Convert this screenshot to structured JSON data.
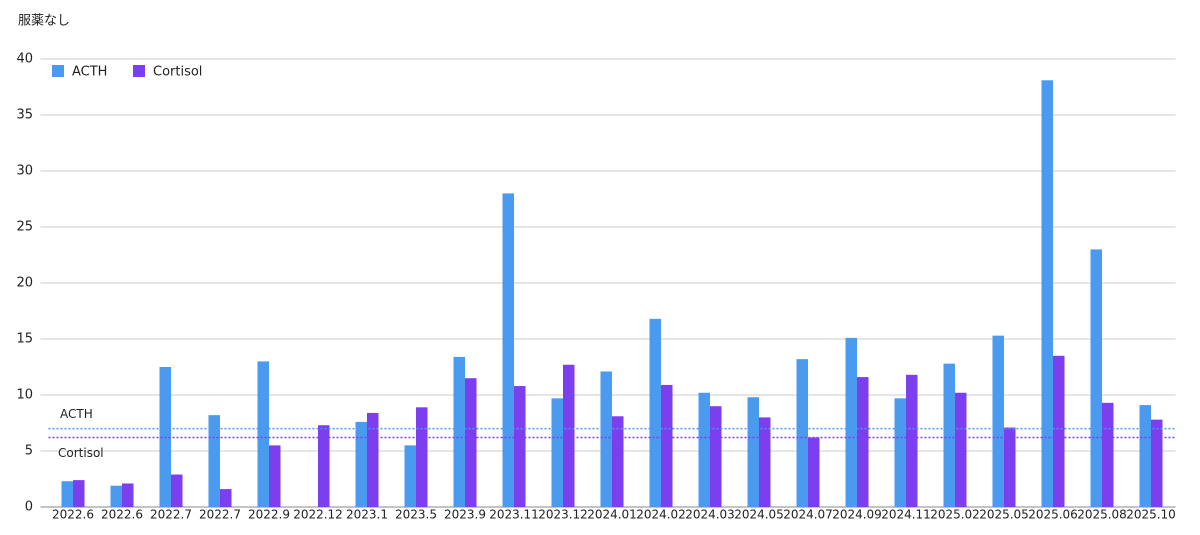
{
  "chart_data": {
    "type": "bar",
    "title": "服薬なし",
    "categories": [
      "2022.6",
      "2022.6",
      "2022.7",
      "2022.7",
      "2022.9",
      "2022.12",
      "2023.1",
      "2023.5",
      "2023.9",
      "2023.11",
      "2023.12",
      "2024.01",
      "2024.02",
      "2024.03",
      "2024.05",
      "2024.07",
      "2024.09",
      "2024.11",
      "2025.02",
      "2025.05",
      "2025.06",
      "2025.08",
      "2025.10"
    ],
    "series": [
      {
        "name": "ACTH",
        "color": "#4a9af0",
        "values": [
          2.3,
          1.9,
          12.5,
          8.2,
          13.0,
          null,
          7.6,
          5.5,
          13.4,
          28.0,
          9.7,
          12.1,
          16.8,
          10.2,
          9.8,
          13.2,
          15.1,
          9.7,
          12.8,
          15.3,
          38.1,
          23.0,
          9.1
        ]
      },
      {
        "name": "Cortisol",
        "color": "#7b3ff0",
        "values": [
          2.4,
          2.1,
          2.9,
          1.6,
          5.5,
          7.3,
          8.4,
          8.9,
          11.5,
          10.8,
          12.7,
          8.1,
          10.9,
          9.0,
          8.0,
          6.2,
          11.6,
          11.8,
          10.2,
          7.1,
          13.5,
          9.3,
          7.8
        ]
      }
    ],
    "reference_lines": [
      {
        "label": "ACTH",
        "value": 7.0,
        "color": "#4a9af0"
      },
      {
        "label": "Cortisol",
        "value": 6.2,
        "color": "#7b3ff0"
      }
    ],
    "ylim": [
      0,
      40
    ],
    "yticks": [
      0,
      5,
      10,
      15,
      20,
      25,
      30,
      35,
      40
    ],
    "grid": true,
    "legend": "top-left"
  }
}
